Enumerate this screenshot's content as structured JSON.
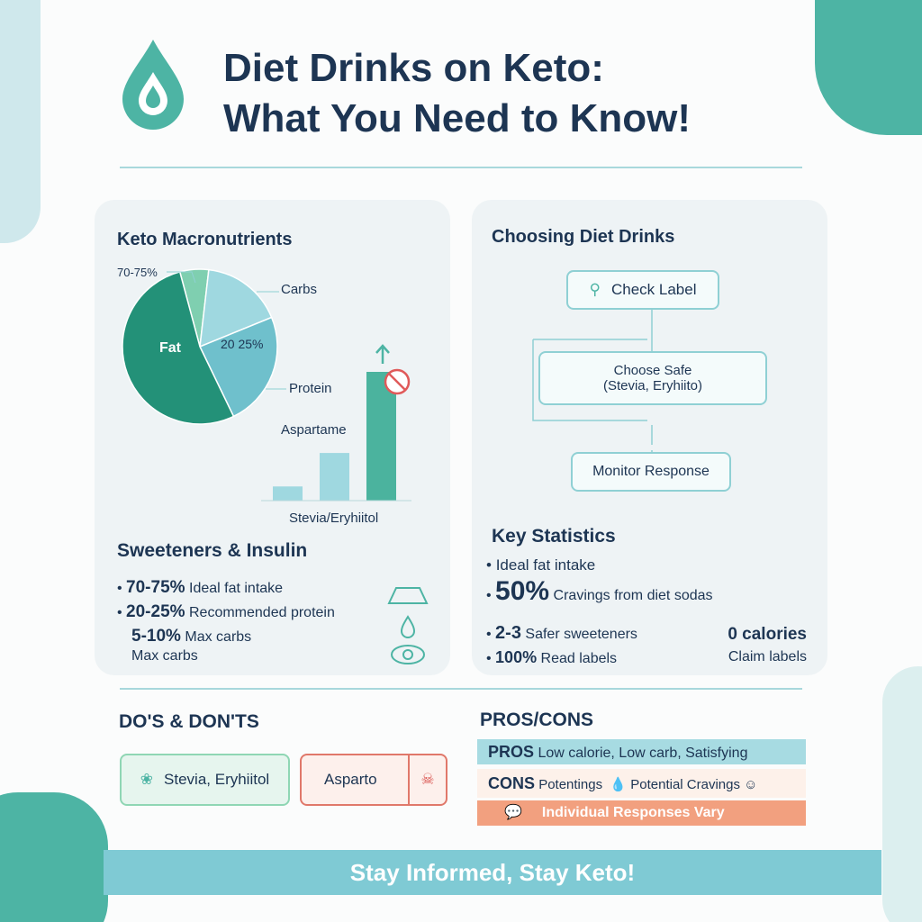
{
  "header": {
    "title_lines": [
      "Diet Drinks on Keto:",
      "What You Need to Know!"
    ]
  },
  "macros": {
    "title": "Keto Macronutrients",
    "pie": {
      "start_angle": -105,
      "slices": [
        {
          "value": 6,
          "color": "#7fcfb0"
        },
        {
          "value": 17,
          "color": "#9fd8e0"
        },
        {
          "value": 24,
          "color": "#6fc0cc"
        },
        {
          "value": 53,
          "color": "#239178"
        }
      ],
      "labels": [
        "70-75%",
        "Carbs",
        "Fat",
        "20 25%",
        "Protein"
      ]
    },
    "bars": {
      "label": "Aspartame",
      "axis_label": "Stevia/Eryhiitol",
      "values": [
        11,
        37,
        100
      ],
      "colors": [
        "#9fd8e0",
        "#9fd8e0",
        "#4bb39e"
      ]
    }
  },
  "sweeteners": {
    "title": "Sweeteners & Insulin",
    "items": [
      {
        "value": "70-75%",
        "text": "Ideal fat intake"
      },
      {
        "value": "20-25%",
        "text": "Recommended protein"
      },
      {
        "value": "5-10%",
        "text": "Max carbs"
      }
    ],
    "extra": "Max carbs"
  },
  "choosing": {
    "title": "Choosing Diet Drinks",
    "steps": [
      "Check Label",
      "Choose Safe",
      "(Stevia, Eryhiito)",
      "Monitor Response"
    ]
  },
  "stats": {
    "title": "Key Statistics",
    "items": [
      {
        "value": "",
        "text": "Ideal fat intake"
      }
    ],
    "rows": [
      {
        "value": "50%",
        "text": "Cravings from diet sodas"
      },
      {
        "value": "2-3",
        "text": "Safer sweeteners"
      },
      {
        "value": "100%",
        "text": "Read labels"
      }
    ],
    "side_value": "0 calories",
    "side_text": "Claim labels"
  },
  "dos": {
    "title": "DO'S & DON'TS",
    "do": "Stevia, Eryhiitol",
    "dont": "Asparto"
  },
  "pros_cons": {
    "title": "PROS/CONS",
    "pros_label": "PROS",
    "pros": "Low calorie, Low carb, Satisfying",
    "cons_label": "CONS",
    "cons_a": "Potentings",
    "cons_b": "Potential Cravings",
    "note": "Individual Responses Vary"
  },
  "footer": {
    "text": "Stay Informed, Stay Keto!"
  }
}
